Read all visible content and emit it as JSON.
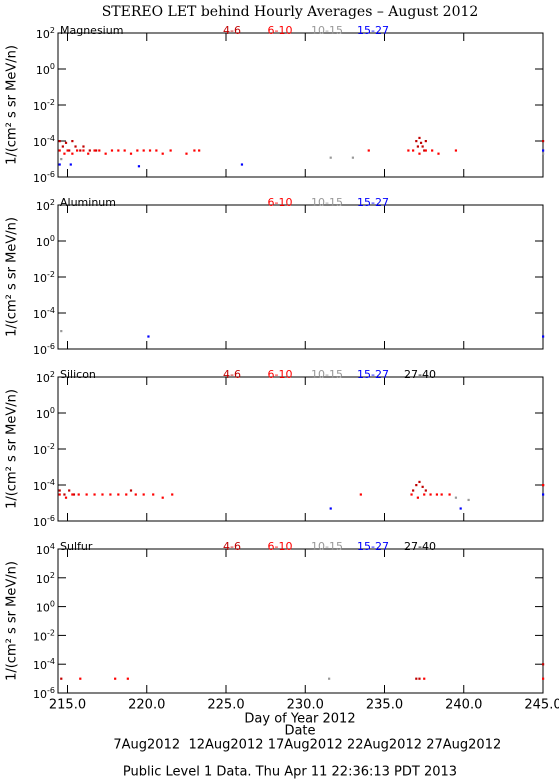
{
  "title": "STEREO LET behind Hourly Averages – August 2012",
  "x_label": "Day of Year 2012",
  "date_label": "Date",
  "date_ticks": [
    {
      "value": 220,
      "label": "7Aug2012"
    },
    {
      "value": 225,
      "label": "12Aug2012"
    },
    {
      "value": 230,
      "label": "17Aug2012"
    },
    {
      "value": 235,
      "label": "22Aug2012"
    },
    {
      "value": 240,
      "label": "27Aug2012"
    }
  ],
  "footer": "Public Level 1 Data. Thu Apr 11 22:36:13 PDT 2013",
  "chart_data": [
    {
      "type": "scatter",
      "label": "Magnesium",
      "y_label": "1/(cm² s sr MeV/n)",
      "log_y": true,
      "xlim": [
        214.4,
        245
      ],
      "xticks": [
        215,
        220,
        225,
        230,
        235,
        240,
        245
      ],
      "ylim": [
        1e-06,
        100
      ],
      "yticks": [
        {
          "value": 1e-06,
          "label": "10",
          "exponent": "-6"
        },
        {
          "value": 0.0001,
          "label": "10",
          "exponent": "-4"
        },
        {
          "value": 0.01,
          "label": "10",
          "exponent": "-2"
        },
        {
          "value": 1,
          "label": "10",
          "exponent": "0"
        },
        {
          "value": 100,
          "label": "10",
          "exponent": "2"
        }
      ],
      "series": [
        {
          "name": "4-6",
          "color": "#c00000",
          "x": [
            214.5,
            214.7,
            214.9,
            215.1,
            215.3,
            215.5,
            215.8,
            216.0,
            216.4,
            216.8,
            237.0,
            237.1,
            237.2,
            237.3,
            237.4,
            237.5,
            237.6,
            245.0
          ],
          "values": [
            0.0001,
            5e-05,
            8e-05,
            3e-05,
            0.0001,
            5e-05,
            3e-05,
            5e-05,
            3e-05,
            3e-05,
            0.0001,
            5e-05,
            0.00015,
            8e-05,
            5e-05,
            3e-05,
            0.0001,
            0.0001
          ]
        },
        {
          "name": "6-10",
          "color": "#ff0000",
          "x": [
            214.5,
            214.8,
            215.0,
            215.3,
            215.6,
            216.0,
            216.3,
            216.7,
            217.0,
            217.4,
            217.8,
            218.2,
            218.6,
            219.0,
            219.4,
            219.8,
            220.2,
            220.6,
            221.0,
            221.5,
            222.5,
            223.0,
            223.3,
            234.0,
            236.5,
            236.8,
            237.2,
            237.6,
            238.0,
            238.4,
            239.5
          ],
          "values": [
            3e-05,
            2e-05,
            3e-05,
            2e-05,
            3e-05,
            3e-05,
            2e-05,
            3e-05,
            3e-05,
            2e-05,
            3e-05,
            3e-05,
            3e-05,
            2e-05,
            3e-05,
            3e-05,
            3e-05,
            3e-05,
            2e-05,
            3e-05,
            2e-05,
            3e-05,
            3e-05,
            3e-05,
            3e-05,
            3e-05,
            2e-05,
            3e-05,
            3e-05,
            2e-05,
            3e-05
          ]
        },
        {
          "name": "10-15",
          "color": "#999999",
          "x": [
            214.6,
            231.6,
            233.0,
            245.0
          ],
          "values": [
            1e-05,
            1.2e-05,
            1.2e-05,
            2e-05
          ]
        },
        {
          "name": "15-27",
          "color": "#0000ff",
          "x": [
            214.5,
            215.2,
            219.5,
            226.0,
            245.0
          ],
          "values": [
            5e-06,
            5e-06,
            4e-06,
            5e-06,
            3e-05
          ]
        }
      ]
    },
    {
      "type": "scatter",
      "label": "Aluminum",
      "y_label": "1/(cm² s sr MeV/n)",
      "log_y": true,
      "xlim": [
        214.4,
        245
      ],
      "xticks": [
        215,
        220,
        225,
        230,
        235,
        240,
        245
      ],
      "ylim": [
        1e-06,
        100
      ],
      "yticks": [
        {
          "value": 1e-06,
          "label": "10",
          "exponent": "-6"
        },
        {
          "value": 0.0001,
          "label": "10",
          "exponent": "-4"
        },
        {
          "value": 0.01,
          "label": "10",
          "exponent": "-2"
        },
        {
          "value": 1,
          "label": "10",
          "exponent": "0"
        },
        {
          "value": 100,
          "label": "10",
          "exponent": "2"
        }
      ],
      "series": [
        {
          "name": "6-10",
          "color": "#ff0000",
          "x": [],
          "values": []
        },
        {
          "name": "10-15",
          "color": "#999999",
          "x": [
            214.6
          ],
          "values": [
            1e-05
          ]
        },
        {
          "name": "15-27",
          "color": "#0000ff",
          "x": [
            220.1,
            245.0
          ],
          "values": [
            5e-06,
            5e-06
          ]
        }
      ]
    },
    {
      "type": "scatter",
      "label": "Silicon",
      "y_label": "1/(cm² s sr MeV/n)",
      "log_y": true,
      "xlim": [
        214.4,
        245
      ],
      "xticks": [
        215,
        220,
        225,
        230,
        235,
        240,
        245
      ],
      "ylim": [
        1e-06,
        100
      ],
      "yticks": [
        {
          "value": 1e-06,
          "label": "10",
          "exponent": "-6"
        },
        {
          "value": 0.0001,
          "label": "10",
          "exponent": "-4"
        },
        {
          "value": 0.01,
          "label": "10",
          "exponent": "-2"
        },
        {
          "value": 1,
          "label": "10",
          "exponent": "0"
        },
        {
          "value": 100,
          "label": "10",
          "exponent": "2"
        }
      ],
      "series": [
        {
          "name": "4-6",
          "color": "#c00000",
          "x": [
            214.5,
            214.8,
            215.1,
            215.4,
            219.0,
            236.8,
            237.0,
            237.2,
            237.4,
            237.6,
            245.0
          ],
          "values": [
            5e-05,
            3e-05,
            5e-05,
            3e-05,
            5e-05,
            5e-05,
            0.0001,
            0.00015,
            8e-05,
            5e-05,
            0.0001
          ]
        },
        {
          "name": "6-10",
          "color": "#ff0000",
          "x": [
            214.5,
            214.9,
            215.3,
            215.7,
            216.2,
            216.7,
            217.2,
            217.7,
            218.2,
            218.7,
            219.3,
            219.8,
            220.4,
            221.0,
            221.6,
            233.5,
            236.7,
            237.1,
            237.5,
            237.9,
            238.3,
            238.6,
            239.1,
            245.0
          ],
          "values": [
            3e-05,
            2e-05,
            3e-05,
            3e-05,
            3e-05,
            3e-05,
            3e-05,
            3e-05,
            3e-05,
            3e-05,
            3e-05,
            3e-05,
            3e-05,
            2e-05,
            3e-05,
            3e-05,
            3e-05,
            2e-05,
            3e-05,
            3e-05,
            3e-05,
            3e-05,
            3e-05,
            0.0001
          ]
        },
        {
          "name": "10-15",
          "color": "#999999",
          "x": [
            239.5,
            240.3
          ],
          "values": [
            2e-05,
            1.5e-05
          ]
        },
        {
          "name": "15-27",
          "color": "#0000ff",
          "x": [
            231.6,
            239.8,
            245.0
          ],
          "values": [
            5e-06,
            5e-06,
            3e-05
          ]
        },
        {
          "name": "27-40",
          "color": "#000000",
          "x": [],
          "values": []
        }
      ]
    },
    {
      "type": "scatter",
      "label": "Sulfur",
      "y_label": "1/(cm² s sr MeV/n)",
      "log_y": true,
      "xlim": [
        214.4,
        245
      ],
      "xticks": [
        {
          "value": 215,
          "label": "215.0"
        },
        {
          "value": 220,
          "label": "220.0"
        },
        {
          "value": 225,
          "label": "225.0"
        },
        {
          "value": 230,
          "label": "230.0"
        },
        {
          "value": 235,
          "label": "235.0"
        },
        {
          "value": 240,
          "label": "240.0"
        },
        {
          "value": 245,
          "label": "245.0"
        }
      ],
      "ylim": [
        1e-06,
        10000
      ],
      "yticks": [
        {
          "value": 1e-06,
          "label": "10",
          "exponent": "-6"
        },
        {
          "value": 0.0001,
          "label": "10",
          "exponent": "-4"
        },
        {
          "value": 0.01,
          "label": "10",
          "exponent": "-2"
        },
        {
          "value": 1,
          "label": "10",
          "exponent": "0"
        },
        {
          "value": 100,
          "label": "10",
          "exponent": "2"
        },
        {
          "value": 10000,
          "label": "10",
          "exponent": "4"
        }
      ],
      "series": [
        {
          "name": "4-6",
          "color": "#c00000",
          "x": [
            214.6,
            237.0,
            237.2,
            245.0
          ],
          "values": [
            1e-05,
            1e-05,
            1e-05,
            0.0001
          ]
        },
        {
          "name": "6-10",
          "color": "#ff0000",
          "x": [
            215.8,
            218.0,
            218.8,
            237.5,
            245.0
          ],
          "values": [
            1e-05,
            1e-05,
            1e-05,
            1e-05,
            1e-05
          ]
        },
        {
          "name": "10-15",
          "color": "#999999",
          "x": [
            231.5
          ],
          "values": [
            1e-05
          ]
        },
        {
          "name": "15-27",
          "color": "#0000ff",
          "x": [],
          "values": []
        },
        {
          "name": "27-40",
          "color": "#000000",
          "x": [],
          "values": []
        }
      ]
    }
  ]
}
